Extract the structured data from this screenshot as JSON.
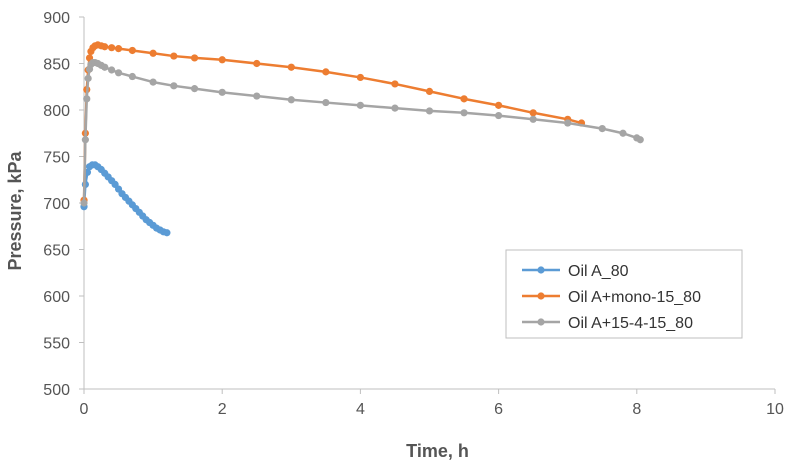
{
  "chart_data": {
    "type": "scatter",
    "title": "",
    "xlabel": "Time, h",
    "ylabel": "Pressure, kPa",
    "xlim": [
      0,
      10
    ],
    "ylim": [
      500,
      900
    ],
    "xticks": [
      0,
      2,
      4,
      6,
      8,
      10
    ],
    "yticks": [
      500,
      550,
      600,
      650,
      700,
      750,
      800,
      850,
      900
    ],
    "grid": {
      "x": false,
      "y": false
    },
    "legend_position": "bottom-right",
    "series": [
      {
        "name": "Oil A_80",
        "color": "#5b9bd5",
        "x": [
          0.0,
          0.02,
          0.05,
          0.08,
          0.12,
          0.16,
          0.2,
          0.25,
          0.3,
          0.35,
          0.4,
          0.45,
          0.5,
          0.55,
          0.6,
          0.65,
          0.7,
          0.75,
          0.8,
          0.85,
          0.9,
          0.95,
          1.0,
          1.05,
          1.1,
          1.15,
          1.2
        ],
        "y": [
          696,
          720,
          733,
          739,
          741,
          741,
          739,
          736,
          732,
          728,
          724,
          720,
          715,
          710,
          706,
          702,
          698,
          694,
          690,
          686,
          682,
          679,
          676,
          673,
          671,
          669,
          668
        ]
      },
      {
        "name": "Oil A+mono-15_80",
        "color": "#ed7d31",
        "x": [
          0.0,
          0.02,
          0.04,
          0.06,
          0.08,
          0.1,
          0.13,
          0.16,
          0.2,
          0.25,
          0.3,
          0.4,
          0.5,
          0.7,
          1.0,
          1.3,
          1.6,
          2.0,
          2.5,
          3.0,
          3.5,
          4.0,
          4.5,
          5.0,
          5.5,
          6.0,
          6.5,
          7.0,
          7.2
        ],
        "y": [
          703,
          775,
          822,
          843,
          856,
          863,
          867,
          869,
          870,
          869,
          868,
          867,
          866,
          864,
          861,
          858,
          856,
          854,
          850,
          846,
          841,
          835,
          828,
          820,
          812,
          805,
          797,
          790,
          786
        ]
      },
      {
        "name": "Oil A+15-4-15_80",
        "color": "#a5a5a5",
        "x": [
          0.0,
          0.02,
          0.04,
          0.06,
          0.08,
          0.1,
          0.13,
          0.16,
          0.2,
          0.25,
          0.3,
          0.4,
          0.5,
          0.7,
          1.0,
          1.3,
          1.6,
          2.0,
          2.5,
          3.0,
          3.5,
          4.0,
          4.5,
          5.0,
          5.5,
          6.0,
          6.5,
          7.0,
          7.5,
          7.8,
          8.0,
          8.05
        ],
        "y": [
          700,
          768,
          812,
          834,
          844,
          849,
          851,
          851,
          850,
          848,
          846,
          843,
          840,
          836,
          830,
          826,
          823,
          819,
          815,
          811,
          808,
          805,
          802,
          799,
          797,
          794,
          790,
          786,
          780,
          775,
          770,
          768
        ]
      }
    ]
  }
}
